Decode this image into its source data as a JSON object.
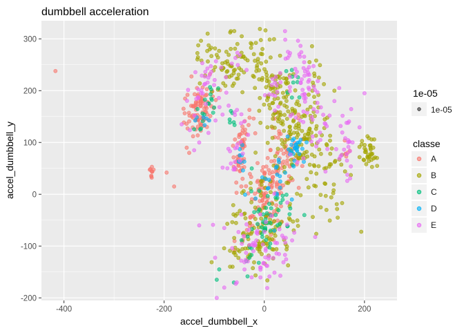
{
  "chart_data": {
    "type": "scatter",
    "title": "dumbbell acceleration",
    "xlabel": "accel_dumbbell_x",
    "ylabel": "accel_dumbbell_y",
    "xlim": [
      -445,
      265
    ],
    "ylim": [
      -205,
      335
    ],
    "x_ticks": [
      -400,
      -200,
      0,
      200
    ],
    "y_ticks": [
      -200,
      -100,
      0,
      100,
      200,
      300
    ],
    "grid": true,
    "point_alpha": 0.6,
    "size_legend": {
      "title": "1e-05",
      "entries": [
        "1e-05"
      ]
    },
    "color_legend": {
      "title": "classe",
      "entries": [
        {
          "label": "A",
          "color": "#F8766D"
        },
        {
          "label": "B",
          "color": "#A3A500"
        },
        {
          "label": "C",
          "color": "#00BF7D"
        },
        {
          "label": "D",
          "color": "#00B0F6"
        },
        {
          "label": "E",
          "color": "#E76BF3"
        }
      ]
    },
    "legend_position": "right",
    "series": [
      {
        "name": "A",
        "color": "#F8766D",
        "clusters": [
          {
            "cx": -130,
            "cy": 165,
            "spread": [
              14,
              28
            ],
            "angle": 72,
            "count": 90
          },
          {
            "cx": -45,
            "cy": 95,
            "spread": [
              7,
              35
            ],
            "angle": 80,
            "count": 55
          },
          {
            "cx": 15,
            "cy": 15,
            "spread": [
              20,
              55
            ],
            "angle": 68,
            "count": 150
          },
          {
            "cx": 30,
            "cy": 120,
            "spread": [
              15,
              10
            ],
            "angle": 0,
            "count": 8
          },
          {
            "cx": 165,
            "cy": 78,
            "spread": [
              10,
              5
            ],
            "angle": 0,
            "count": 6
          },
          {
            "cx": -225,
            "cy": 45,
            "spread": [
              8,
              5
            ],
            "angle": 0,
            "count": 10
          }
        ],
        "points": [
          [
            -417,
            238
          ],
          [
            -195,
            42
          ],
          [
            -180,
            15
          ],
          [
            -155,
            90
          ],
          [
            -150,
            80
          ]
        ]
      },
      {
        "name": "B",
        "color": "#A3A500",
        "clusters": [
          {
            "cx": -75,
            "cy": 255,
            "spread": [
              35,
              30
            ],
            "angle": 20,
            "count": 70
          },
          {
            "cx": 20,
            "cy": 210,
            "spread": [
              55,
              20
            ],
            "angle": 30,
            "count": 90
          },
          {
            "cx": 55,
            "cy": 120,
            "spread": [
              45,
              25
            ],
            "angle": 35,
            "count": 90
          },
          {
            "cx": 120,
            "cy": 70,
            "spread": [
              55,
              20
            ],
            "angle": 20,
            "count": 60
          },
          {
            "cx": 205,
            "cy": 80,
            "spread": [
              18,
              8
            ],
            "angle": 0,
            "count": 35
          },
          {
            "cx": 10,
            "cy": -40,
            "spread": [
              35,
              55
            ],
            "angle": 60,
            "count": 110
          },
          {
            "cx": -20,
            "cy": -110,
            "spread": [
              25,
              25
            ],
            "angle": 0,
            "count": 35
          },
          {
            "cx": 100,
            "cy": 205,
            "spread": [
              35,
              8
            ],
            "angle": 0,
            "count": 20
          }
        ],
        "points": [
          [
            -45,
            305
          ],
          [
            -60,
            315
          ],
          [
            -25,
            290
          ],
          [
            140,
            200
          ],
          [
            225,
            70
          ]
        ]
      },
      {
        "name": "C",
        "color": "#00BF7D",
        "clusters": [
          {
            "cx": 5,
            "cy": -60,
            "spread": [
              25,
              45
            ],
            "angle": 70,
            "count": 55
          },
          {
            "cx": -115,
            "cy": 170,
            "spread": [
              12,
              25
            ],
            "angle": 75,
            "count": 18
          },
          {
            "cx": -60,
            "cy": 145,
            "spread": [
              8,
              10
            ],
            "angle": 0,
            "count": 6
          },
          {
            "cx": 60,
            "cy": 200,
            "spread": [
              20,
              10
            ],
            "angle": 0,
            "count": 8
          }
        ],
        "points": [
          [
            -90,
            -145
          ],
          [
            -95,
            -165
          ],
          [
            55,
            240
          ],
          [
            -25,
            50
          ],
          [
            80,
            -40
          ]
        ]
      },
      {
        "name": "D",
        "color": "#00B0F6",
        "clusters": [
          {
            "cx": 60,
            "cy": 85,
            "spread": [
              12,
              10
            ],
            "angle": 0,
            "count": 25
          },
          {
            "cx": 5,
            "cy": 20,
            "spread": [
              18,
              30
            ],
            "angle": 70,
            "count": 18
          },
          {
            "cx": -45,
            "cy": 70,
            "spread": [
              8,
              15
            ],
            "angle": 80,
            "count": 8
          },
          {
            "cx": -120,
            "cy": 150,
            "spread": [
              8,
              15
            ],
            "angle": 80,
            "count": 6
          }
        ],
        "points": [
          [
            70,
            100
          ],
          [
            55,
            -10
          ],
          [
            20,
            -70
          ]
        ]
      },
      {
        "name": "E",
        "color": "#E76BF3",
        "clusters": [
          {
            "cx": -110,
            "cy": 210,
            "spread": [
              25,
              35
            ],
            "angle": 60,
            "count": 45
          },
          {
            "cx": 70,
            "cy": 240,
            "spread": [
              45,
              15
            ],
            "angle": 20,
            "count": 40
          },
          {
            "cx": 110,
            "cy": 140,
            "spread": [
              45,
              30
            ],
            "angle": 30,
            "count": 45
          },
          {
            "cx": 160,
            "cy": 85,
            "spread": [
              30,
              15
            ],
            "angle": 0,
            "count": 20
          },
          {
            "cx": 0,
            "cy": -100,
            "spread": [
              35,
              40
            ],
            "angle": 30,
            "count": 70
          },
          {
            "cx": -55,
            "cy": 95,
            "spread": [
              10,
              30
            ],
            "angle": 80,
            "count": 20
          },
          {
            "cx": 25,
            "cy": 195,
            "spread": [
              20,
              10
            ],
            "angle": 0,
            "count": 12
          }
        ],
        "points": [
          [
            -130,
            100
          ],
          [
            -165,
            135
          ],
          [
            -140,
            85
          ],
          [
            140,
            180
          ],
          [
            200,
            195
          ],
          [
            -95,
            -200
          ],
          [
            -80,
            -180
          ],
          [
            -130,
            -60
          ],
          [
            165,
            65
          ],
          [
            -55,
            -170
          ]
        ]
      }
    ]
  }
}
